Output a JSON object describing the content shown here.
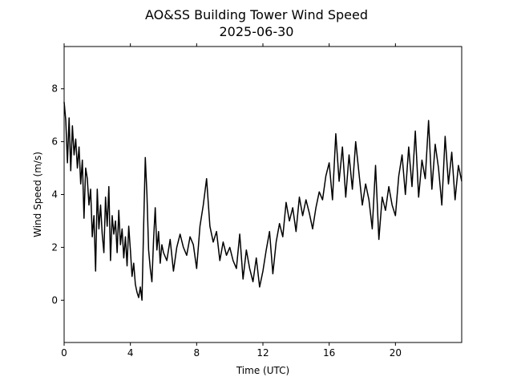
{
  "chart_data": {
    "type": "line",
    "title": "AO&SS Building Tower Wind Speed",
    "subtitle": "2025-06-30",
    "xlabel": "Time (UTC)",
    "ylabel": "Wind Speed (m/s)",
    "xlim": [
      0,
      24
    ],
    "ylim": [
      -1.6,
      9.6
    ],
    "xticks": [
      0,
      4,
      8,
      12,
      16,
      20
    ],
    "yticks": [
      0,
      2,
      4,
      6,
      8
    ],
    "grid": false,
    "line_color": "#000000",
    "series": [
      {
        "x": [
          0.0,
          0.1,
          0.2,
          0.3,
          0.4,
          0.5,
          0.6,
          0.7,
          0.8,
          0.9,
          1.0,
          1.1,
          1.2,
          1.3,
          1.4,
          1.5,
          1.6,
          1.7,
          1.8,
          1.9,
          2.0,
          2.1,
          2.2,
          2.3,
          2.4,
          2.5,
          2.6,
          2.7,
          2.8,
          2.9,
          3.0,
          3.1,
          3.2,
          3.3,
          3.4,
          3.5,
          3.6,
          3.7,
          3.8,
          3.9,
          4.0,
          4.1,
          4.2,
          4.3,
          4.4,
          4.5,
          4.6,
          4.7,
          4.8,
          4.9,
          5.0,
          5.1,
          5.2,
          5.3,
          5.4,
          5.5,
          5.6,
          5.7,
          5.8,
          5.9,
          6.0,
          6.2,
          6.4,
          6.6,
          6.8,
          7.0,
          7.2,
          7.4,
          7.6,
          7.8,
          8.0,
          8.2,
          8.4,
          8.6,
          8.8,
          9.0,
          9.2,
          9.4,
          9.6,
          9.8,
          10.0,
          10.2,
          10.4,
          10.6,
          10.8,
          11.0,
          11.2,
          11.4,
          11.6,
          11.8,
          12.0,
          12.2,
          12.4,
          12.6,
          12.8,
          13.0,
          13.2,
          13.4,
          13.6,
          13.8,
          14.0,
          14.2,
          14.4,
          14.6,
          14.8,
          15.0,
          15.2,
          15.4,
          15.6,
          15.8,
          16.0,
          16.2,
          16.4,
          16.6,
          16.8,
          17.0,
          17.2,
          17.4,
          17.6,
          17.8,
          18.0,
          18.2,
          18.4,
          18.6,
          18.8,
          19.0,
          19.2,
          19.4,
          19.6,
          19.8,
          20.0,
          20.2,
          20.4,
          20.6,
          20.8,
          21.0,
          21.2,
          21.4,
          21.6,
          21.8,
          22.0,
          22.2,
          22.4,
          22.6,
          22.8,
          23.0,
          23.2,
          23.4,
          23.6,
          23.8,
          24.0
        ],
        "y": [
          7.5,
          6.8,
          5.2,
          6.9,
          4.9,
          6.6,
          5.5,
          6.1,
          5.0,
          5.8,
          4.4,
          5.3,
          3.1,
          5.0,
          4.6,
          3.6,
          4.2,
          2.4,
          3.2,
          1.1,
          4.2,
          2.7,
          3.6,
          2.5,
          1.8,
          3.9,
          2.8,
          4.3,
          1.5,
          3.2,
          2.5,
          3.0,
          1.8,
          3.4,
          2.1,
          2.7,
          1.6,
          2.4,
          1.3,
          2.8,
          1.9,
          0.9,
          1.4,
          0.6,
          0.3,
          0.1,
          0.5,
          0.0,
          2.8,
          5.4,
          4.0,
          1.9,
          1.2,
          0.7,
          2.3,
          3.5,
          1.9,
          2.6,
          1.4,
          2.1,
          1.8,
          1.5,
          2.3,
          1.1,
          2.0,
          2.5,
          2.0,
          1.7,
          2.4,
          2.1,
          1.2,
          2.8,
          3.6,
          4.6,
          2.8,
          2.2,
          2.6,
          1.5,
          2.2,
          1.7,
          2.0,
          1.5,
          1.2,
          2.5,
          0.8,
          1.9,
          1.2,
          0.7,
          1.6,
          0.5,
          1.1,
          1.9,
          2.6,
          1.0,
          2.2,
          2.9,
          2.4,
          3.7,
          3.0,
          3.5,
          2.6,
          3.9,
          3.2,
          3.8,
          3.3,
          2.7,
          3.5,
          4.1,
          3.8,
          4.7,
          5.2,
          3.8,
          6.3,
          4.5,
          5.8,
          3.9,
          5.5,
          4.2,
          6.0,
          4.8,
          3.6,
          4.4,
          3.8,
          2.7,
          5.1,
          2.3,
          3.9,
          3.4,
          4.3,
          3.6,
          3.2,
          4.7,
          5.5,
          4.0,
          5.8,
          4.3,
          6.4,
          3.9,
          5.3,
          4.6,
          6.8,
          4.2,
          5.9,
          5.0,
          3.6,
          6.2,
          4.4,
          5.6,
          3.8,
          5.1,
          4.5
        ]
      }
    ]
  }
}
